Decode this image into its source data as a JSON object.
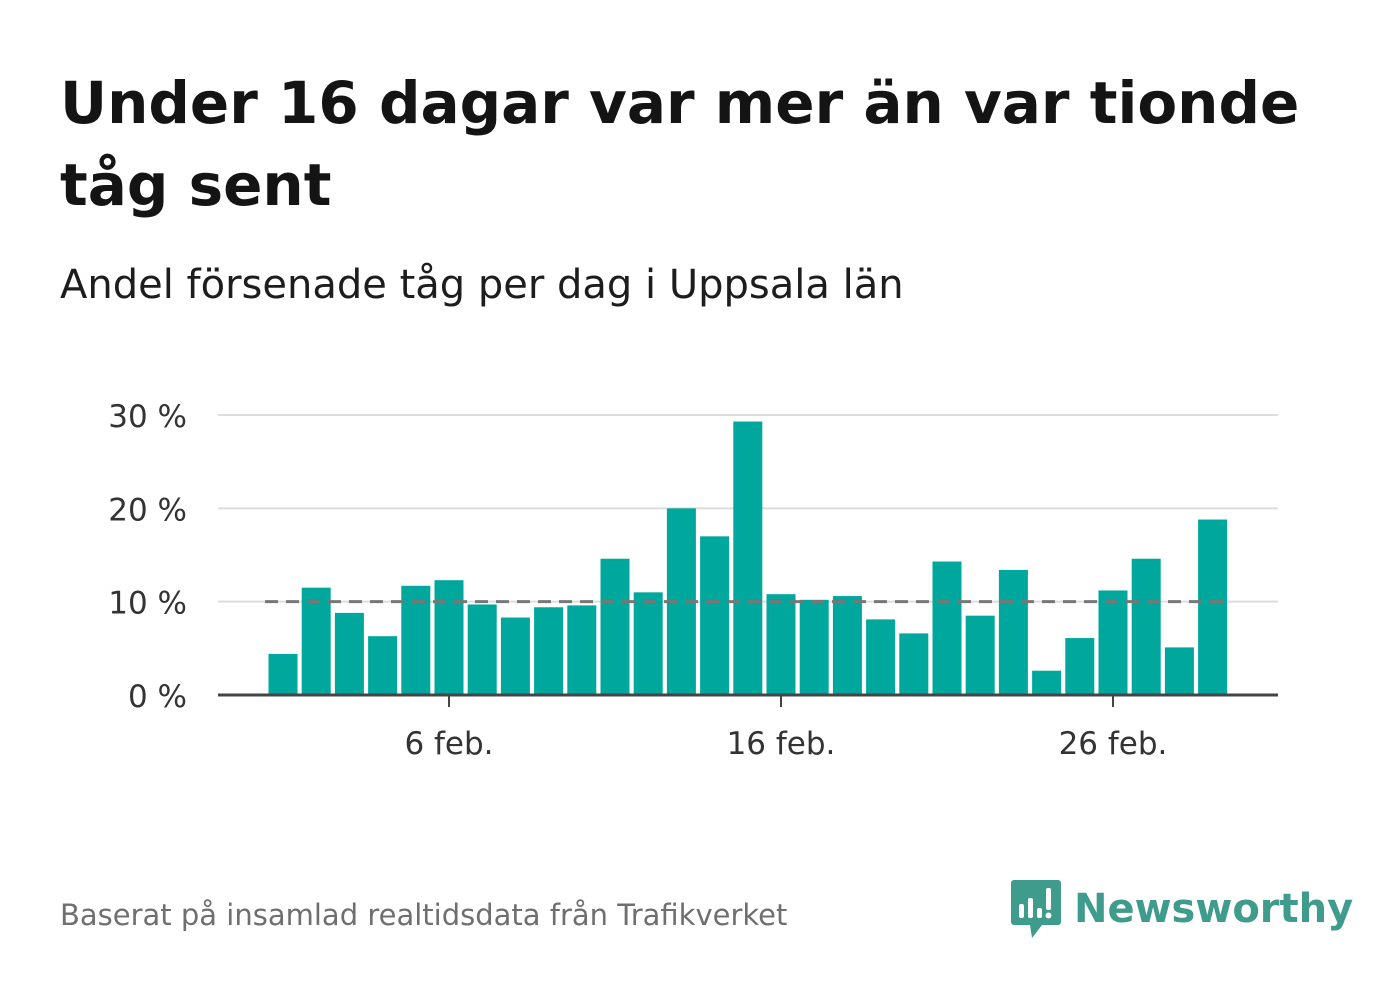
{
  "title": "Under 16 dagar var mer än var tionde tåg sent",
  "subtitle": "Andel försenade tåg per dag i Uppsala län",
  "footer": "Baserat på insamlad realtidsdata från Trafikverket",
  "brand": {
    "name": "Newsworthy",
    "icon": "newsworthy-logo-icon",
    "color": "#3f9b8c"
  },
  "colors": {
    "bar": "#00a79d",
    "grid": "#dddddd",
    "baseline": "#444444",
    "reference": "#777777"
  },
  "chart_data": {
    "type": "bar",
    "x_start_day": 1,
    "values": [
      4.4,
      11.5,
      8.8,
      6.3,
      11.7,
      12.3,
      9.7,
      8.3,
      9.4,
      9.6,
      14.6,
      11.0,
      20.0,
      17.0,
      29.3,
      10.8,
      10.2,
      10.6,
      8.1,
      6.6,
      14.3,
      8.5,
      13.4,
      2.6,
      6.1,
      11.2,
      14.6,
      5.1,
      18.8
    ],
    "ylim": [
      0,
      30
    ],
    "yticks": [
      0,
      10,
      20,
      30
    ],
    "ytick_labels": [
      "0 %",
      "10 %",
      "20 %",
      "30 %"
    ],
    "xticks": [
      6,
      16,
      26
    ],
    "xtick_labels": [
      "6 feb.",
      "16 feb.",
      "26 feb."
    ],
    "reference_line": 10,
    "reference_line_style": "dashed",
    "grid": true,
    "xlabel": "",
    "ylabel": ""
  }
}
